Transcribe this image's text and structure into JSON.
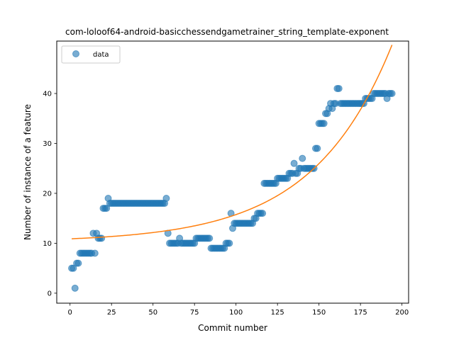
{
  "chart_data": {
    "type": "scatter",
    "title": "com-loloof64-android-basicchessendgametrainer_string_template-exponent",
    "xlabel": "Commit number",
    "ylabel": "Number of instance of a feature",
    "xlim": [
      -8,
      204
    ],
    "ylim": [
      -2,
      50.5
    ],
    "xticks": [
      0,
      25,
      50,
      75,
      100,
      125,
      150,
      175,
      200
    ],
    "yticks": [
      0,
      10,
      20,
      30,
      40
    ],
    "grid": false,
    "legend": {
      "position": "top-left",
      "entries": [
        "data"
      ]
    },
    "colors": {
      "data": "#1f77b4",
      "fit": "#ff7f0e"
    },
    "series": [
      {
        "name": "data",
        "kind": "scatter",
        "points": [
          [
            1,
            5
          ],
          [
            2,
            5
          ],
          [
            3,
            1
          ],
          [
            4,
            6
          ],
          [
            5,
            6
          ],
          [
            6,
            8
          ],
          [
            7,
            8
          ],
          [
            8,
            8
          ],
          [
            9,
            8
          ],
          [
            10,
            8
          ],
          [
            11,
            8
          ],
          [
            12,
            8
          ],
          [
            13,
            8
          ],
          [
            14,
            12
          ],
          [
            15,
            8
          ],
          [
            16,
            12
          ],
          [
            17,
            11
          ],
          [
            18,
            11
          ],
          [
            19,
            11
          ],
          [
            20,
            17
          ],
          [
            21,
            17
          ],
          [
            22,
            17
          ],
          [
            23,
            19
          ],
          [
            24,
            18
          ],
          [
            25,
            18
          ],
          [
            26,
            18
          ],
          [
            27,
            18
          ],
          [
            28,
            18
          ],
          [
            29,
            18
          ],
          [
            30,
            18
          ],
          [
            31,
            18
          ],
          [
            32,
            18
          ],
          [
            33,
            18
          ],
          [
            34,
            18
          ],
          [
            35,
            18
          ],
          [
            36,
            18
          ],
          [
            37,
            18
          ],
          [
            38,
            18
          ],
          [
            39,
            18
          ],
          [
            40,
            18
          ],
          [
            41,
            18
          ],
          [
            42,
            18
          ],
          [
            43,
            18
          ],
          [
            44,
            18
          ],
          [
            45,
            18
          ],
          [
            46,
            18
          ],
          [
            47,
            18
          ],
          [
            48,
            18
          ],
          [
            49,
            18
          ],
          [
            50,
            18
          ],
          [
            51,
            18
          ],
          [
            52,
            18
          ],
          [
            53,
            18
          ],
          [
            54,
            18
          ],
          [
            55,
            18
          ],
          [
            56,
            18
          ],
          [
            57,
            18
          ],
          [
            58,
            19
          ],
          [
            59,
            12
          ],
          [
            60,
            10
          ],
          [
            61,
            10
          ],
          [
            62,
            10
          ],
          [
            63,
            10
          ],
          [
            64,
            10
          ],
          [
            65,
            10
          ],
          [
            66,
            11
          ],
          [
            67,
            10
          ],
          [
            68,
            10
          ],
          [
            69,
            10
          ],
          [
            70,
            10
          ],
          [
            71,
            10
          ],
          [
            72,
            10
          ],
          [
            73,
            10
          ],
          [
            74,
            10
          ],
          [
            75,
            10
          ],
          [
            76,
            11
          ],
          [
            77,
            11
          ],
          [
            78,
            11
          ],
          [
            79,
            11
          ],
          [
            80,
            11
          ],
          [
            81,
            11
          ],
          [
            82,
            11
          ],
          [
            83,
            11
          ],
          [
            84,
            11
          ],
          [
            85,
            9
          ],
          [
            86,
            9
          ],
          [
            87,
            9
          ],
          [
            88,
            9
          ],
          [
            89,
            9
          ],
          [
            90,
            9
          ],
          [
            91,
            9
          ],
          [
            92,
            9
          ],
          [
            93,
            9
          ],
          [
            94,
            10
          ],
          [
            95,
            10
          ],
          [
            96,
            10
          ],
          [
            97,
            16
          ],
          [
            98,
            13
          ],
          [
            99,
            14
          ],
          [
            100,
            14
          ],
          [
            101,
            14
          ],
          [
            102,
            14
          ],
          [
            103,
            14
          ],
          [
            104,
            14
          ],
          [
            105,
            14
          ],
          [
            106,
            14
          ],
          [
            107,
            14
          ],
          [
            108,
            14
          ],
          [
            109,
            14
          ],
          [
            110,
            14
          ],
          [
            111,
            15
          ],
          [
            112,
            15
          ],
          [
            113,
            16
          ],
          [
            114,
            16
          ],
          [
            115,
            16
          ],
          [
            116,
            16
          ],
          [
            117,
            22
          ],
          [
            118,
            22
          ],
          [
            119,
            22
          ],
          [
            120,
            22
          ],
          [
            121,
            22
          ],
          [
            122,
            22
          ],
          [
            123,
            22
          ],
          [
            124,
            22
          ],
          [
            125,
            23
          ],
          [
            126,
            23
          ],
          [
            127,
            23
          ],
          [
            128,
            23
          ],
          [
            129,
            23
          ],
          [
            130,
            23
          ],
          [
            131,
            23
          ],
          [
            132,
            24
          ],
          [
            133,
            24
          ],
          [
            134,
            24
          ],
          [
            135,
            26
          ],
          [
            136,
            24
          ],
          [
            137,
            24
          ],
          [
            138,
            25
          ],
          [
            139,
            25
          ],
          [
            140,
            27
          ],
          [
            141,
            25
          ],
          [
            142,
            25
          ],
          [
            143,
            25
          ],
          [
            144,
            25
          ],
          [
            145,
            25
          ],
          [
            146,
            25
          ],
          [
            147,
            25
          ],
          [
            148,
            29
          ],
          [
            149,
            29
          ],
          [
            150,
            34
          ],
          [
            151,
            34
          ],
          [
            152,
            34
          ],
          [
            153,
            34
          ],
          [
            154,
            36
          ],
          [
            155,
            36
          ],
          [
            156,
            37
          ],
          [
            157,
            38
          ],
          [
            158,
            37
          ],
          [
            159,
            38
          ],
          [
            160,
            38
          ],
          [
            161,
            41
          ],
          [
            162,
            41
          ],
          [
            163,
            38
          ],
          [
            164,
            38
          ],
          [
            165,
            38
          ],
          [
            166,
            38
          ],
          [
            167,
            38
          ],
          [
            168,
            38
          ],
          [
            169,
            38
          ],
          [
            170,
            38
          ],
          [
            171,
            38
          ],
          [
            172,
            38
          ],
          [
            173,
            38
          ],
          [
            174,
            38
          ],
          [
            175,
            38
          ],
          [
            176,
            38
          ],
          [
            177,
            38
          ],
          [
            178,
            39
          ],
          [
            179,
            39
          ],
          [
            180,
            39
          ],
          [
            181,
            39
          ],
          [
            182,
            39
          ],
          [
            183,
            40
          ],
          [
            184,
            40
          ],
          [
            185,
            40
          ],
          [
            186,
            40
          ],
          [
            187,
            40
          ],
          [
            188,
            40
          ],
          [
            189,
            40
          ],
          [
            190,
            40
          ],
          [
            191,
            39
          ],
          [
            192,
            40
          ],
          [
            193,
            40
          ],
          [
            194,
            40
          ]
        ]
      },
      {
        "kind": "line",
        "curve": {
          "form": "exponential",
          "x0": 1,
          "x1": 194,
          "y_at_x0": 10.9,
          "y_at_x1": 47.0,
          "offset": 10.2,
          "rate": 0.0209
        }
      }
    ]
  }
}
